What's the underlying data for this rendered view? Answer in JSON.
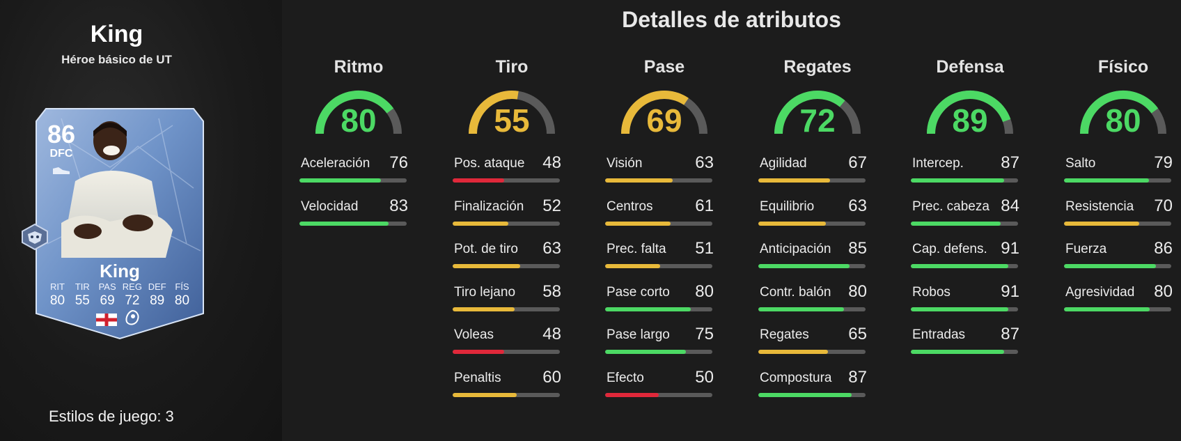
{
  "player": {
    "name": "King",
    "subtitle": "Héroe básico de UT"
  },
  "card": {
    "rating": "86",
    "position": "DFC",
    "name": "King",
    "stats": [
      {
        "label": "RIT",
        "value": "80"
      },
      {
        "label": "TIR",
        "value": "55"
      },
      {
        "label": "PAS",
        "value": "69"
      },
      {
        "label": "REG",
        "value": "72"
      },
      {
        "label": "DEF",
        "value": "89"
      },
      {
        "label": "FÍS",
        "value": "80"
      }
    ]
  },
  "playstyles_label": "Estilos de juego: 3",
  "title": "Detalles de atributos",
  "colors": {
    "green": "#4cd964",
    "yellow": "#e8b93a",
    "red": "#e0283a",
    "track": "#5a5a5a"
  },
  "columns": [
    {
      "name": "Ritmo",
      "value": "80",
      "level": 80,
      "color": "green",
      "attributes": [
        {
          "label": "Aceleración",
          "value": "76",
          "level": 76,
          "color": "green"
        },
        {
          "label": "Velocidad",
          "value": "83",
          "level": 83,
          "color": "green"
        }
      ]
    },
    {
      "name": "Tiro",
      "value": "55",
      "level": 55,
      "color": "yellow",
      "attributes": [
        {
          "label": "Pos. ataque",
          "value": "48",
          "level": 48,
          "color": "red"
        },
        {
          "label": "Finalización",
          "value": "52",
          "level": 52,
          "color": "yellow"
        },
        {
          "label": "Pot. de tiro",
          "value": "63",
          "level": 63,
          "color": "yellow"
        },
        {
          "label": "Tiro lejano",
          "value": "58",
          "level": 58,
          "color": "yellow"
        },
        {
          "label": "Voleas",
          "value": "48",
          "level": 48,
          "color": "red"
        },
        {
          "label": "Penaltis",
          "value": "60",
          "level": 60,
          "color": "yellow"
        }
      ]
    },
    {
      "name": "Pase",
      "value": "69",
      "level": 69,
      "color": "yellow",
      "attributes": [
        {
          "label": "Visión",
          "value": "63",
          "level": 63,
          "color": "yellow"
        },
        {
          "label": "Centros",
          "value": "61",
          "level": 61,
          "color": "yellow"
        },
        {
          "label": "Prec. falta",
          "value": "51",
          "level": 51,
          "color": "yellow"
        },
        {
          "label": "Pase corto",
          "value": "80",
          "level": 80,
          "color": "green"
        },
        {
          "label": "Pase largo",
          "value": "75",
          "level": 75,
          "color": "green"
        },
        {
          "label": "Efecto",
          "value": "50",
          "level": 50,
          "color": "red"
        }
      ]
    },
    {
      "name": "Regates",
      "value": "72",
      "level": 72,
      "color": "green",
      "attributes": [
        {
          "label": "Agilidad",
          "value": "67",
          "level": 67,
          "color": "yellow"
        },
        {
          "label": "Equilibrio",
          "value": "63",
          "level": 63,
          "color": "yellow"
        },
        {
          "label": "Anticipación",
          "value": "85",
          "level": 85,
          "color": "green"
        },
        {
          "label": "Contr. balón",
          "value": "80",
          "level": 80,
          "color": "green"
        },
        {
          "label": "Regates",
          "value": "65",
          "level": 65,
          "color": "yellow"
        },
        {
          "label": "Compostura",
          "value": "87",
          "level": 87,
          "color": "green"
        }
      ]
    },
    {
      "name": "Defensa",
      "value": "89",
      "level": 89,
      "color": "green",
      "attributes": [
        {
          "label": "Intercep.",
          "value": "87",
          "level": 87,
          "color": "green"
        },
        {
          "label": "Prec. cabeza",
          "value": "84",
          "level": 84,
          "color": "green"
        },
        {
          "label": "Cap. defens.",
          "value": "91",
          "level": 91,
          "color": "green"
        },
        {
          "label": "Robos",
          "value": "91",
          "level": 91,
          "color": "green"
        },
        {
          "label": "Entradas",
          "value": "87",
          "level": 87,
          "color": "green"
        }
      ]
    },
    {
      "name": "Físico",
      "value": "80",
      "level": 80,
      "color": "green",
      "attributes": [
        {
          "label": "Salto",
          "value": "79",
          "level": 79,
          "color": "green"
        },
        {
          "label": "Resistencia",
          "value": "70",
          "level": 70,
          "color": "yellow"
        },
        {
          "label": "Fuerza",
          "value": "86",
          "level": 86,
          "color": "green"
        },
        {
          "label": "Agresividad",
          "value": "80",
          "level": 80,
          "color": "green"
        }
      ]
    }
  ]
}
